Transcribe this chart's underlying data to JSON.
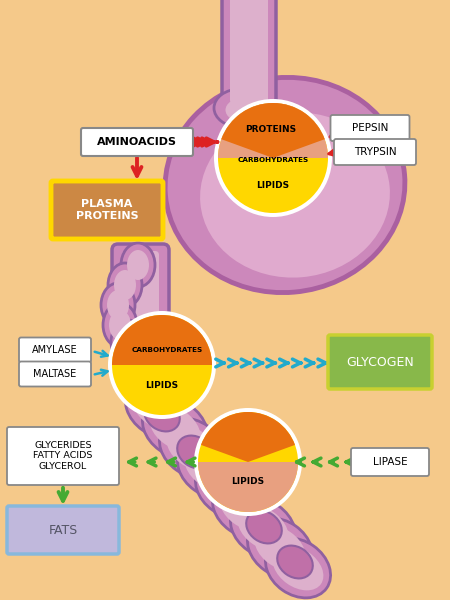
{
  "bg_color": "#F5C98A",
  "stomach_outer": "#CC88BB",
  "stomach_inner": "#E0AACE",
  "stomach_edge": "#AA60A0",
  "tube_outer": "#CC88BB",
  "tube_inner": "#DDB0CC",
  "tube_edge": "#9060A0",
  "intestine_node": "#C070A8",
  "circle_white": "#FFFFFF",
  "circle_yellow": "#FFD700",
  "circle_salmon": "#E8A080",
  "circle_orange": "#E87010",
  "plasma_bg": "#CC8844",
  "plasma_border": "#FFD700",
  "glycogen_bg": "#88B84A",
  "glycogen_border": "#C8D030",
  "fats_bg": "#C0B8DC",
  "fats_border": "#88B8DC",
  "red_arrow": "#DD2222",
  "cyan_arrow": "#22AACC",
  "green_arrow": "#44AA33",
  "lbl_aminoacids": "AMINOACIDS",
  "lbl_plasma": "PLASMA\nPROTEINS",
  "lbl_proteins": "PROTEINS",
  "lbl_carbs": "CARBOHYDRATES",
  "lbl_lipids": "LIPIDS",
  "lbl_pepsin": "PEPSIN",
  "lbl_trypsin": "TRYPSIN",
  "lbl_amylase": "AMYLASE",
  "lbl_maltase": "MALTASE",
  "lbl_glycogen": "GLYCOGEN",
  "lbl_glycerides": "GLYCERIDES\nFATTY ACIDS\nGLYCEROL",
  "lbl_lipase": "LIPASE",
  "lbl_fats": "FATS"
}
